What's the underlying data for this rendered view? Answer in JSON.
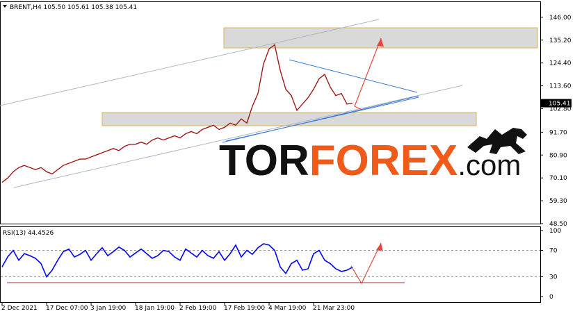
{
  "header": "BRENT,H4  105.50 105.61 105.38 105.41",
  "watermark": {
    "part1": "TOR",
    "part2": "FOREX",
    "part3": ".com"
  },
  "chart_data": [
    {
      "type": "line",
      "color": "#a01818",
      "ylim": [
        48.5,
        153.5
      ],
      "yticks": [
        {
          "value": 146,
          "label": "146.00"
        },
        {
          "value": 135.2,
          "label": "135.20"
        },
        {
          "value": 124.4,
          "label": "124.40"
        },
        {
          "value": 113.6,
          "label": "113.60"
        },
        {
          "value": 102.8,
          "label": "102.80"
        },
        {
          "value": 91.7,
          "label": "91.70"
        },
        {
          "value": 80.9,
          "label": "80.90"
        },
        {
          "value": 70.1,
          "label": "70.10"
        },
        {
          "value": 59.3,
          "label": "59.30"
        },
        {
          "value": 48.5,
          "label": "48.50"
        }
      ],
      "current_price": 105.41,
      "values": [
        68,
        70,
        73,
        75,
        76,
        75,
        74,
        75,
        73,
        72,
        74,
        76,
        77,
        78,
        79,
        79,
        80,
        81,
        82,
        83,
        84,
        83,
        85,
        86,
        86,
        87,
        86,
        88,
        89,
        88,
        89,
        90,
        89,
        91,
        92,
        91,
        93,
        94,
        95,
        93,
        94,
        96,
        95,
        98,
        96,
        104,
        110,
        124,
        131,
        133,
        121,
        112,
        109,
        102,
        105,
        108,
        112,
        117,
        119,
        113,
        109,
        110,
        105,
        105.41
      ]
    },
    {
      "type": "line",
      "title": "RSI(13) 44.4526",
      "color": "#0000ff",
      "ylim": [
        0,
        100
      ],
      "yticks": [
        0,
        30,
        70,
        100
      ],
      "categories": [
        "2 Dec 2021",
        null,
        null,
        null,
        null,
        null,
        null,
        null,
        "17 Dec 07:00",
        null,
        null,
        null,
        null,
        null,
        null,
        null,
        "3 Jan 19:00",
        null,
        null,
        null,
        null,
        null,
        null,
        null,
        "18 Jan 19:00",
        null,
        null,
        null,
        null,
        null,
        null,
        null,
        "2 Feb 19:00",
        null,
        null,
        null,
        null,
        null,
        null,
        null,
        "17 Feb 19:00",
        null,
        null,
        null,
        null,
        null,
        null,
        null,
        "4 Mar 19:00",
        null,
        null,
        null,
        null,
        null,
        null,
        null,
        "21 Mar 23:00",
        null,
        null,
        null,
        null,
        null,
        null,
        null
      ],
      "values": [
        45,
        60,
        70,
        55,
        65,
        62,
        58,
        50,
        30,
        40,
        55,
        68,
        72,
        60,
        64,
        70,
        55,
        65,
        74,
        62,
        68,
        75,
        70,
        60,
        66,
        72,
        65,
        58,
        62,
        70,
        68,
        60,
        55,
        72,
        66,
        60,
        70,
        62,
        58,
        68,
        55,
        65,
        78,
        60,
        70,
        64,
        74,
        80,
        78,
        70,
        45,
        35,
        50,
        55,
        40,
        42,
        65,
        70,
        55,
        50,
        42,
        38,
        40,
        44.4526
      ]
    }
  ]
}
